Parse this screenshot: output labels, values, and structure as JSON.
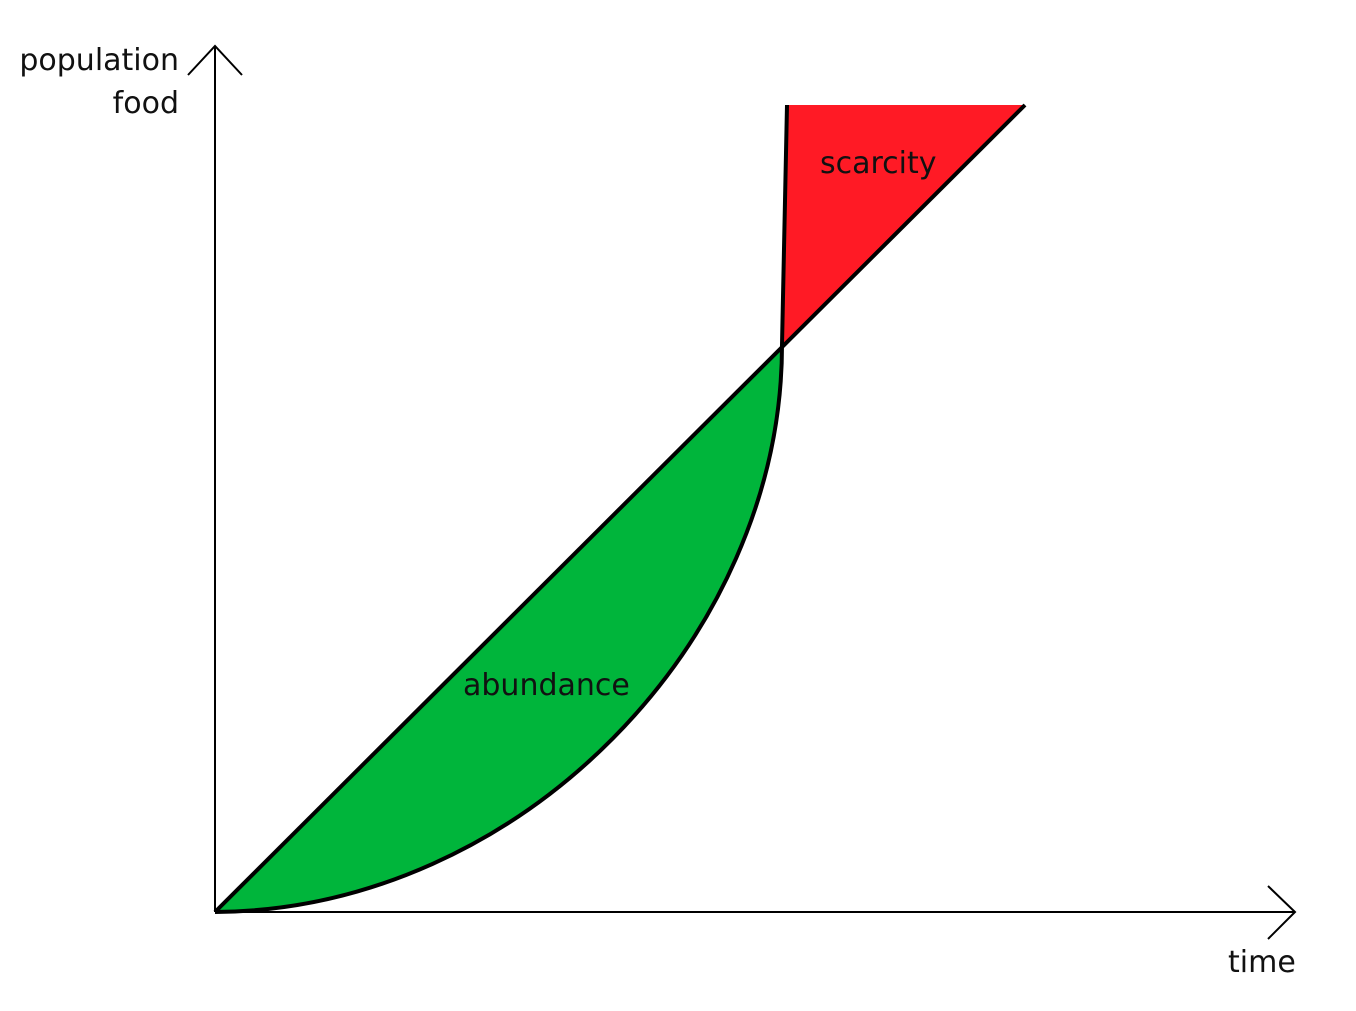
{
  "diagram": {
    "y_axis_labels": [
      "population",
      "food"
    ],
    "x_axis_label": "time",
    "regions": [
      {
        "label": "abundance",
        "color": "#00b53b"
      },
      {
        "label": "scarcity",
        "color": "#ff1a25"
      }
    ],
    "lines": {
      "food": {
        "shape": "linear"
      },
      "population": {
        "shape": "exponential"
      }
    },
    "line_color": "#000000"
  }
}
